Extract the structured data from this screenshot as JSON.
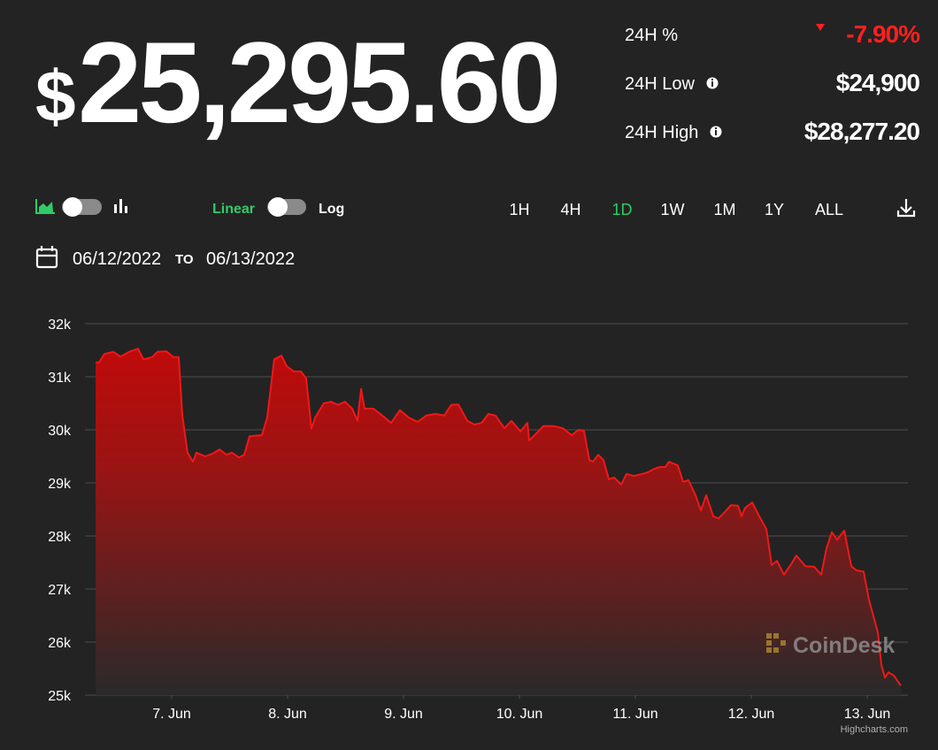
{
  "price_currency": "$",
  "price_value": "25,295.60",
  "stats": [
    {
      "label": "24H %",
      "value": "-7.90%"
    },
    {
      "label": "24H Low",
      "value": "$24,900"
    },
    {
      "label": "24H High",
      "value": "$28,277.20"
    }
  ],
  "scale_options": [
    "Linear",
    "Log"
  ],
  "ranges": [
    "1H",
    "4H",
    "1D",
    "1W",
    "1M",
    "1Y",
    "ALL"
  ],
  "active_range_index": 2,
  "date_from": "06/12/2022",
  "date_separator": "TO",
  "date_to": "06/13/2022",
  "watermark": "CoinDesk",
  "credit": "Highcharts.com",
  "chart_data": {
    "type": "area",
    "color": "#f01818",
    "grid": true,
    "xlim": [
      6.252,
      13.351
    ],
    "ylim": [
      25000,
      32000
    ],
    "xticks": [
      {
        "value": 7,
        "label": "7. Jun"
      },
      {
        "value": 8,
        "label": "8. Jun"
      },
      {
        "value": 9,
        "label": "9. Jun"
      },
      {
        "value": 10,
        "label": "10. Jun"
      },
      {
        "value": 11,
        "label": "11. Jun"
      },
      {
        "value": 12,
        "label": "12. Jun"
      },
      {
        "value": 13,
        "label": "13. Jun"
      }
    ],
    "yticks": [
      {
        "value": 25000,
        "label": "25k"
      },
      {
        "value": 26000,
        "label": "26k"
      },
      {
        "value": 27000,
        "label": "27k"
      },
      {
        "value": 28000,
        "label": "28k"
      },
      {
        "value": 29000,
        "label": "29k"
      },
      {
        "value": 30000,
        "label": "30k"
      },
      {
        "value": 31000,
        "label": "31k"
      },
      {
        "value": 32000,
        "label": "32k"
      }
    ],
    "x": [
      6.344,
      6.374,
      6.42,
      6.496,
      6.557,
      6.634,
      6.71,
      6.756,
      6.832,
      6.878,
      6.954,
      7.015,
      7.061,
      7.092,
      7.137,
      7.183,
      7.214,
      7.29,
      7.351,
      7.412,
      7.473,
      7.519,
      7.58,
      7.626,
      7.672,
      7.779,
      7.824,
      7.885,
      7.947,
      7.992,
      8.053,
      8.115,
      8.16,
      8.206,
      8.237,
      8.313,
      8.374,
      8.435,
      8.496,
      8.557,
      8.603,
      8.634,
      8.664,
      8.74,
      8.817,
      8.893,
      8.969,
      9.046,
      9.122,
      9.198,
      9.275,
      9.351,
      9.412,
      9.473,
      9.55,
      9.611,
      9.672,
      9.733,
      9.794,
      9.87,
      9.931,
      10.008,
      10.069,
      10.084,
      10.145,
      10.206,
      10.298,
      10.374,
      10.45,
      10.511,
      10.557,
      10.603,
      10.634,
      10.679,
      10.725,
      10.771,
      10.817,
      10.878,
      10.924,
      10.985,
      11.061,
      11.107,
      11.168,
      11.214,
      11.26,
      11.29,
      11.366,
      11.412,
      11.458,
      11.519,
      11.565,
      11.611,
      11.672,
      11.718,
      11.779,
      11.824,
      11.885,
      11.916,
      11.947,
      12.008,
      12.069,
      12.13,
      12.176,
      12.221,
      12.282,
      12.344,
      12.389,
      12.466,
      12.542,
      12.603,
      12.649,
      12.695,
      12.74,
      12.802,
      12.863,
      12.908,
      12.969,
      13.015,
      13.061,
      13.092,
      13.122,
      13.153,
      13.183,
      13.229,
      13.29
    ],
    "values": [
      31270,
      31270,
      31430,
      31470,
      31380,
      31470,
      31530,
      31330,
      31370,
      31470,
      31480,
      31370,
      31370,
      30270,
      29570,
      29400,
      29570,
      29500,
      29550,
      29630,
      29530,
      29570,
      29480,
      29530,
      29880,
      29900,
      30230,
      31330,
      31400,
      31200,
      31100,
      31100,
      30970,
      30020,
      30230,
      30500,
      30530,
      30470,
      30530,
      30400,
      30170,
      30770,
      30400,
      30400,
      30270,
      30130,
      30370,
      30230,
      30150,
      30270,
      30300,
      30270,
      30470,
      30480,
      30170,
      30100,
      30130,
      30300,
      30270,
      30030,
      30170,
      29970,
      30130,
      29800,
      29930,
      30070,
      30070,
      30030,
      29900,
      30000,
      29980,
      29430,
      29400,
      29530,
      29430,
      29070,
      29100,
      28970,
      29170,
      29130,
      29170,
      29200,
      29270,
      29300,
      29300,
      29400,
      29330,
      29020,
      29050,
      28770,
      28480,
      28770,
      28370,
      28330,
      28470,
      28580,
      28570,
      28370,
      28530,
      28630,
      28370,
      28130,
      27450,
      27530,
      27270,
      27470,
      27630,
      27430,
      27420,
      27270,
      27770,
      28070,
      27930,
      28100,
      27430,
      27350,
      27330,
      26800,
      26430,
      26180,
      25570,
      25330,
      25430,
      25370,
      25180
    ]
  }
}
